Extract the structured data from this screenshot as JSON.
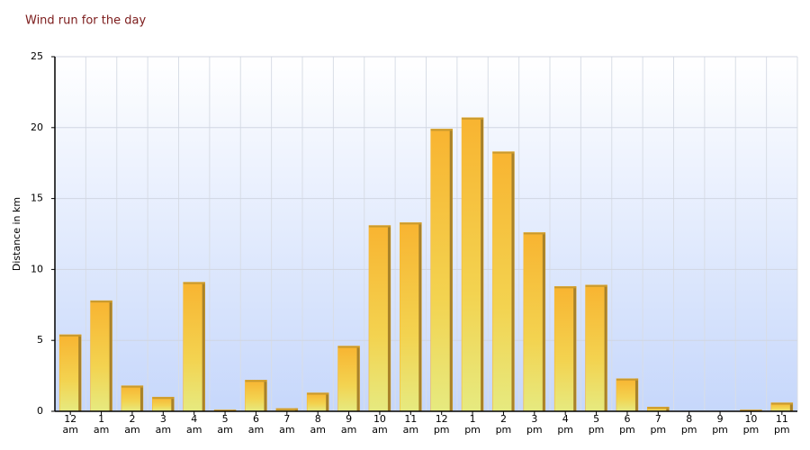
{
  "chart_data": {
    "type": "bar",
    "title": "Wind run for the day",
    "y_label": "Distance in km",
    "categories": [
      "12 am",
      "1 am",
      "2 am",
      "3 am",
      "4 am",
      "5 am",
      "6 am",
      "7 am",
      "8 am",
      "9 am",
      "10 am",
      "11 am",
      "12 pm",
      "1 pm",
      "2 pm",
      "3 pm",
      "4 pm",
      "5 pm",
      "6 pm",
      "7 pm",
      "8 pm",
      "9 pm",
      "10 pm",
      "11 pm"
    ],
    "values": [
      5.4,
      7.8,
      1.8,
      1.0,
      9.1,
      0.1,
      2.2,
      0.2,
      1.3,
      4.6,
      13.1,
      13.3,
      19.9,
      20.7,
      18.3,
      12.6,
      8.8,
      8.9,
      2.3,
      0.3,
      0,
      0,
      0.1,
      0.6
    ],
    "color": "#f7b733",
    "ylim": [
      0,
      25
    ],
    "yticks": [
      0,
      5,
      10,
      15,
      20,
      25
    ],
    "grid": true
  }
}
